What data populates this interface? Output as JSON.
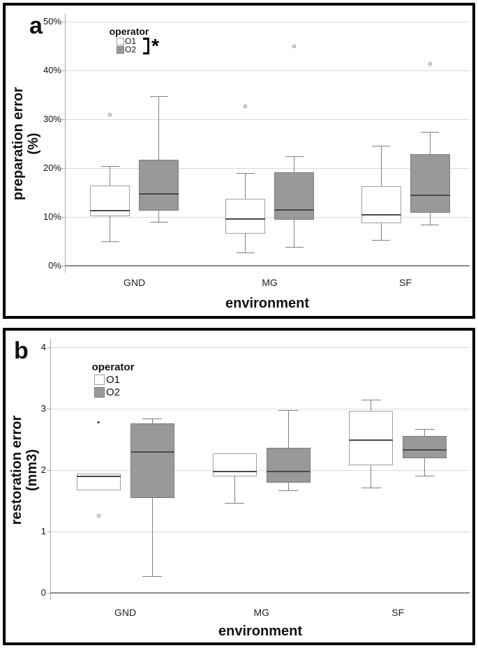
{
  "colors": {
    "o1_fill": "#ffffff",
    "o1_border": "#a0a0a0",
    "o2_fill": "#999999",
    "o2_border": "#7d7d7d",
    "median": "#4a4a4a",
    "whisker": "#808080",
    "gridline": "#d9d9d9",
    "axis": "#a8a8a8",
    "baseline": "#8a8a8a",
    "outlier": "#7a7a7a",
    "text": "#111111"
  },
  "chart_data": [
    {
      "type": "grouped_boxplot",
      "panel_label": "a",
      "xlabel": "environment",
      "ylabel_lines": [
        "preparation error",
        "(%)"
      ],
      "categories": [
        "GND",
        "MG",
        "SF"
      ],
      "legend": {
        "title": "operator",
        "items": [
          "O1",
          "O2"
        ],
        "significance": "*"
      },
      "y_axis": {
        "unit": "%",
        "range": [
          0,
          52
        ],
        "grid": true,
        "ticks": [
          {
            "v": 0,
            "label": "0%"
          },
          {
            "v": 10,
            "label": "10%"
          },
          {
            "v": 20,
            "label": "20%"
          },
          {
            "v": 30,
            "label": "30%"
          },
          {
            "v": 40,
            "label": "40%"
          },
          {
            "v": 50,
            "label": "50%"
          }
        ]
      },
      "series": [
        {
          "name": "O1",
          "fill": "#ffffff",
          "border": "#a0a0a0",
          "boxes": [
            {
              "category": "GND",
              "whisker_low": 4.9,
              "q1": 10.1,
              "median": 11.3,
              "q3": 16.4,
              "whisker_high": 20.3,
              "outliers": [
                31.0
              ],
              "extremes": []
            },
            {
              "category": "MG",
              "whisker_low": 2.7,
              "q1": 6.6,
              "median": 9.6,
              "q3": 13.7,
              "whisker_high": 19.0,
              "outliers": [
                32.7
              ],
              "extremes": []
            },
            {
              "category": "SF",
              "whisker_low": 5.2,
              "q1": 8.7,
              "median": 10.4,
              "q3": 16.3,
              "whisker_high": 24.5,
              "outliers": [],
              "extremes": []
            }
          ]
        },
        {
          "name": "O2",
          "fill": "#999999",
          "border": "#7d7d7d",
          "boxes": [
            {
              "category": "GND",
              "whisker_low": 8.9,
              "q1": 11.3,
              "median": 14.7,
              "q3": 21.7,
              "whisker_high": 34.7,
              "outliers": [],
              "extremes": []
            },
            {
              "category": "MG",
              "whisker_low": 3.8,
              "q1": 9.4,
              "median": 11.5,
              "q3": 19.1,
              "whisker_high": 22.4,
              "outliers": [
                45.0
              ],
              "extremes": []
            },
            {
              "category": "SF",
              "whisker_low": 8.3,
              "q1": 10.9,
              "median": 14.4,
              "q3": 22.8,
              "whisker_high": 27.4,
              "outliers": [
                41.4
              ],
              "extremes": []
            }
          ]
        }
      ]
    },
    {
      "type": "grouped_boxplot",
      "panel_label": "b",
      "xlabel": "environment",
      "ylabel_lines": [
        "restoration error",
        "(mm3)"
      ],
      "categories": [
        "GND",
        "MG",
        "SF"
      ],
      "legend": {
        "title": "operator",
        "items": [
          "O1",
          "O2"
        ],
        "significance": ""
      },
      "y_axis": {
        "unit": "mm3",
        "range": [
          0,
          4.3
        ],
        "grid": true,
        "ticks": [
          {
            "v": 0,
            "label": "0"
          },
          {
            "v": 1,
            "label": "1"
          },
          {
            "v": 2,
            "label": "2"
          },
          {
            "v": 3,
            "label": "3"
          },
          {
            "v": 4,
            "label": "4"
          }
        ]
      },
      "series": [
        {
          "name": "O1",
          "fill": "#ffffff",
          "border": "#a0a0a0",
          "boxes": [
            {
              "category": "GND",
              "whisker_low": null,
              "q1": 1.67,
              "median": 1.9,
              "q3": 1.94,
              "whisker_high": null,
              "outliers": [
                1.26
              ],
              "extremes": [
                2.78
              ]
            },
            {
              "category": "MG",
              "whisker_low": 1.46,
              "q1": 1.9,
              "median": 1.98,
              "q3": 2.27,
              "whisker_high": null,
              "outliers": [],
              "extremes": []
            },
            {
              "category": "SF",
              "whisker_low": 1.71,
              "q1": 2.08,
              "median": 2.49,
              "q3": 2.97,
              "whisker_high": 3.14,
              "outliers": [],
              "extremes": []
            }
          ]
        },
        {
          "name": "O2",
          "fill": "#999999",
          "border": "#7d7d7d",
          "boxes": [
            {
              "category": "GND",
              "whisker_low": 0.27,
              "q1": 1.55,
              "median": 2.29,
              "q3": 2.76,
              "whisker_high": 2.83,
              "outliers": [],
              "extremes": []
            },
            {
              "category": "MG",
              "whisker_low": 1.67,
              "q1": 1.79,
              "median": 1.98,
              "q3": 2.36,
              "whisker_high": 2.97,
              "outliers": [],
              "extremes": []
            },
            {
              "category": "SF",
              "whisker_low": 1.9,
              "q1": 2.19,
              "median": 2.33,
              "q3": 2.56,
              "whisker_high": 2.66,
              "outliers": [],
              "extremes": []
            }
          ]
        }
      ]
    }
  ]
}
